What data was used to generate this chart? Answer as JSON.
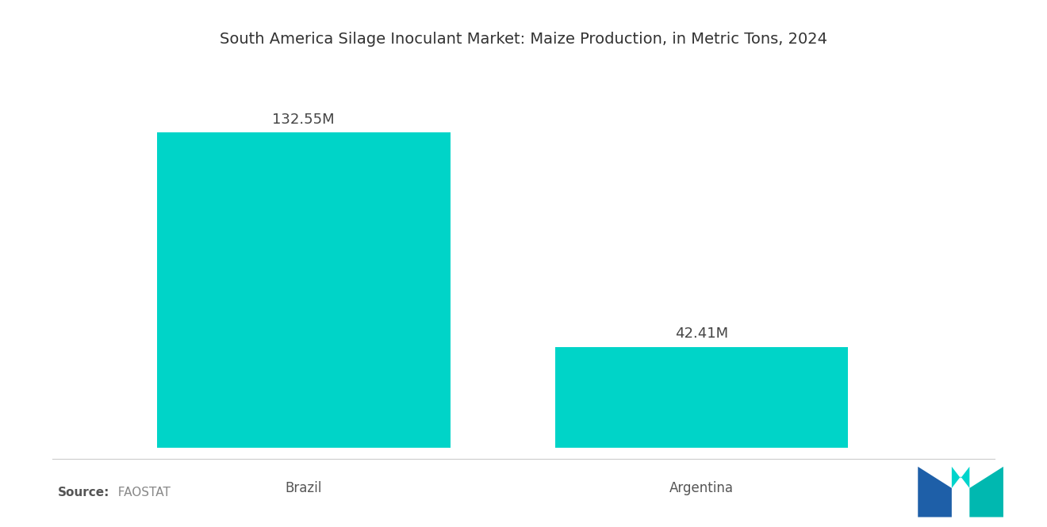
{
  "title": "South America Silage Inoculant Market: Maize Production, in Metric Tons, 2024",
  "categories": [
    "Brazil",
    "Argentina"
  ],
  "values": [
    132.55,
    42.41
  ],
  "labels": [
    "132.55M",
    "42.41M"
  ],
  "bar_color": "#00D4C8",
  "background_color": "#ffffff",
  "title_fontsize": 14,
  "label_fontsize": 13,
  "tick_fontsize": 12,
  "source_bold": "Source:",
  "source_normal": "  FAOSTAT",
  "ylim": [
    0,
    155
  ],
  "x_positions": [
    0.22,
    0.6
  ],
  "bar_width": 0.28
}
